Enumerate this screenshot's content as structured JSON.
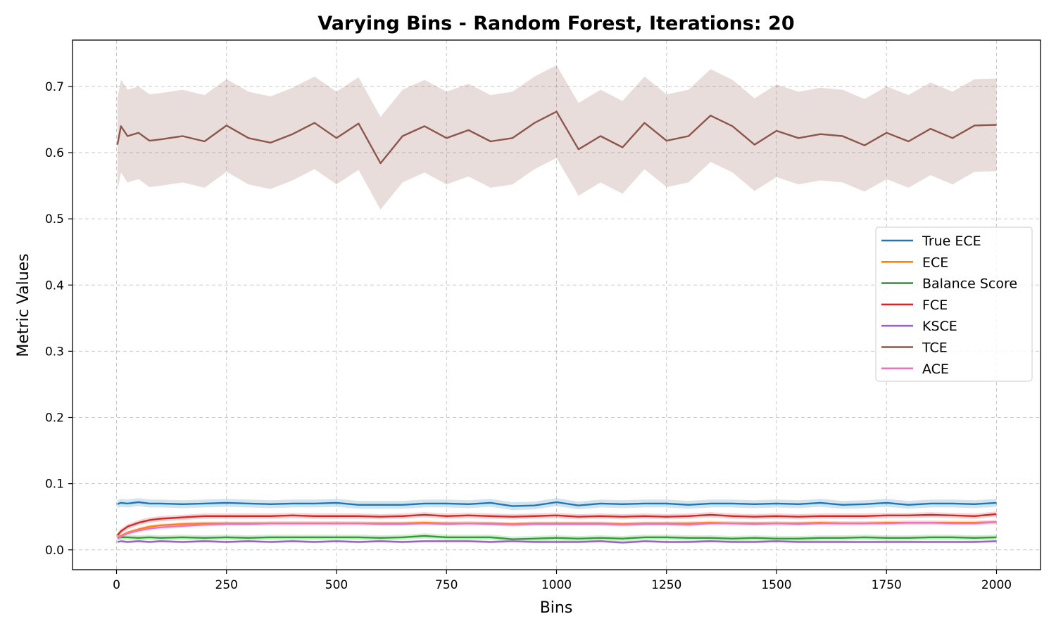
{
  "chart_data": {
    "type": "line",
    "title": "Varying Bins - Random Forest, Iterations: 20",
    "xlabel": "Bins",
    "ylabel": "Metric Values",
    "xlim": [
      -100,
      2100
    ],
    "ylim": [
      -0.03,
      0.77
    ],
    "xticks": [
      0,
      250,
      500,
      750,
      1000,
      1250,
      1500,
      1750,
      2000
    ],
    "xtick_labels": [
      "0",
      "250",
      "500",
      "750",
      "1000",
      "1250",
      "1500",
      "1750",
      "2000"
    ],
    "yticks": [
      0.0,
      0.1,
      0.2,
      0.3,
      0.4,
      0.5,
      0.6,
      0.7
    ],
    "ytick_labels": [
      "0.0",
      "0.1",
      "0.2",
      "0.3",
      "0.4",
      "0.5",
      "0.6",
      "0.7"
    ],
    "grid": true,
    "legend_position": "center-right",
    "x": [
      2,
      10,
      25,
      50,
      75,
      100,
      150,
      200,
      250,
      300,
      350,
      400,
      450,
      500,
      550,
      600,
      650,
      700,
      750,
      800,
      850,
      900,
      950,
      1000,
      1050,
      1100,
      1150,
      1200,
      1250,
      1300,
      1350,
      1400,
      1450,
      1500,
      1550,
      1600,
      1650,
      1700,
      1750,
      1800,
      1850,
      1900,
      1950,
      2000
    ],
    "series": [
      {
        "name": "True ECE",
        "color": "#1f77b4",
        "values": [
          0.069,
          0.071,
          0.07,
          0.072,
          0.07,
          0.07,
          0.069,
          0.07,
          0.071,
          0.07,
          0.069,
          0.07,
          0.07,
          0.071,
          0.068,
          0.068,
          0.068,
          0.07,
          0.07,
          0.069,
          0.071,
          0.066,
          0.067,
          0.072,
          0.067,
          0.07,
          0.069,
          0.07,
          0.07,
          0.068,
          0.07,
          0.07,
          0.069,
          0.07,
          0.069,
          0.071,
          0.068,
          0.069,
          0.071,
          0.068,
          0.07,
          0.07,
          0.069,
          0.071
        ],
        "band": 0.006
      },
      {
        "name": "ECE",
        "color": "#ff7f0e",
        "values": [
          0.018,
          0.021,
          0.026,
          0.031,
          0.035,
          0.037,
          0.039,
          0.04,
          0.04,
          0.04,
          0.04,
          0.04,
          0.04,
          0.04,
          0.04,
          0.04,
          0.04,
          0.041,
          0.04,
          0.04,
          0.04,
          0.039,
          0.04,
          0.04,
          0.04,
          0.04,
          0.039,
          0.04,
          0.04,
          0.04,
          0.041,
          0.04,
          0.04,
          0.04,
          0.04,
          0.041,
          0.04,
          0.04,
          0.041,
          0.041,
          0.041,
          0.041,
          0.041,
          0.042
        ],
        "band": 0.003
      },
      {
        "name": "Balance Score",
        "color": "#2ca02c",
        "values": [
          0.018,
          0.019,
          0.019,
          0.018,
          0.019,
          0.018,
          0.019,
          0.018,
          0.019,
          0.018,
          0.019,
          0.019,
          0.019,
          0.019,
          0.019,
          0.018,
          0.019,
          0.021,
          0.019,
          0.019,
          0.019,
          0.016,
          0.017,
          0.018,
          0.017,
          0.018,
          0.017,
          0.019,
          0.019,
          0.018,
          0.018,
          0.017,
          0.018,
          0.017,
          0.017,
          0.018,
          0.018,
          0.019,
          0.018,
          0.018,
          0.019,
          0.019,
          0.018,
          0.019
        ],
        "band": 0.004
      },
      {
        "name": "FCE",
        "color": "#d62728",
        "values": [
          0.022,
          0.028,
          0.035,
          0.041,
          0.045,
          0.047,
          0.049,
          0.051,
          0.051,
          0.051,
          0.051,
          0.052,
          0.051,
          0.051,
          0.051,
          0.05,
          0.051,
          0.053,
          0.051,
          0.052,
          0.051,
          0.05,
          0.051,
          0.052,
          0.05,
          0.051,
          0.05,
          0.051,
          0.05,
          0.051,
          0.053,
          0.051,
          0.05,
          0.051,
          0.05,
          0.051,
          0.051,
          0.051,
          0.052,
          0.052,
          0.053,
          0.052,
          0.051,
          0.054
        ],
        "band": 0.004
      },
      {
        "name": "KSCE",
        "color": "#9467bd",
        "values": [
          0.012,
          0.013,
          0.012,
          0.013,
          0.012,
          0.013,
          0.012,
          0.013,
          0.012,
          0.013,
          0.012,
          0.013,
          0.012,
          0.013,
          0.012,
          0.013,
          0.012,
          0.013,
          0.013,
          0.013,
          0.012,
          0.013,
          0.012,
          0.012,
          0.012,
          0.013,
          0.011,
          0.013,
          0.012,
          0.012,
          0.013,
          0.012,
          0.012,
          0.013,
          0.012,
          0.012,
          0.012,
          0.012,
          0.012,
          0.012,
          0.012,
          0.012,
          0.012,
          0.013
        ],
        "band": 0.002
      },
      {
        "name": "TCE",
        "color": "#8c564b",
        "values": [
          0.612,
          0.64,
          0.625,
          0.63,
          0.618,
          0.62,
          0.625,
          0.617,
          0.641,
          0.622,
          0.615,
          0.628,
          0.645,
          0.622,
          0.644,
          0.584,
          0.625,
          0.64,
          0.622,
          0.634,
          0.617,
          0.622,
          0.645,
          0.662,
          0.605,
          0.625,
          0.608,
          0.645,
          0.618,
          0.625,
          0.656,
          0.64,
          0.612,
          0.633,
          0.622,
          0.628,
          0.625,
          0.611,
          0.63,
          0.617,
          0.636,
          0.622,
          0.641,
          0.642
        ],
        "band": 0.07
      },
      {
        "name": "ACE",
        "color": "#e377c2",
        "values": [
          0.017,
          0.02,
          0.025,
          0.029,
          0.032,
          0.034,
          0.036,
          0.038,
          0.039,
          0.039,
          0.04,
          0.04,
          0.04,
          0.04,
          0.04,
          0.039,
          0.039,
          0.04,
          0.039,
          0.04,
          0.039,
          0.038,
          0.039,
          0.039,
          0.039,
          0.039,
          0.038,
          0.039,
          0.039,
          0.038,
          0.04,
          0.04,
          0.039,
          0.04,
          0.039,
          0.04,
          0.04,
          0.04,
          0.04,
          0.041,
          0.041,
          0.04,
          0.04,
          0.042
        ],
        "band": 0.003
      }
    ]
  }
}
